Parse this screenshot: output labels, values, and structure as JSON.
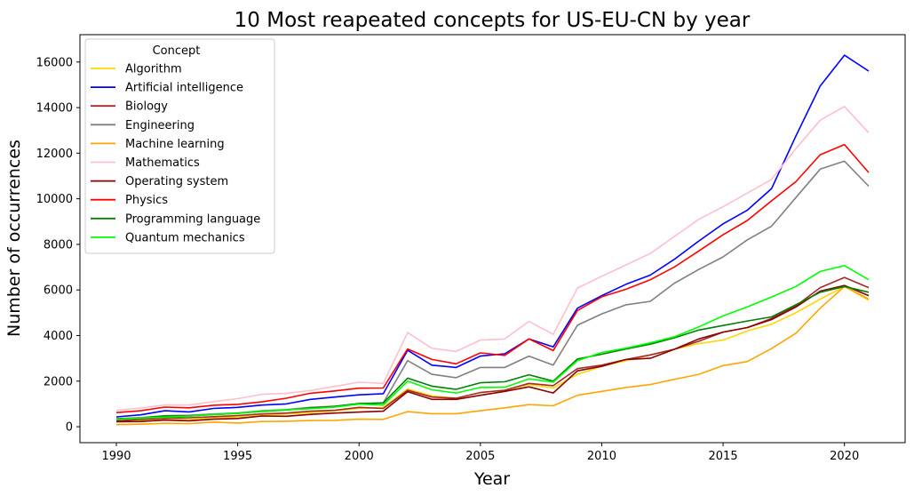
{
  "chart_data": {
    "type": "line",
    "title": "10 Most reapeated concepts for US-EU-CN by year",
    "xlabel": "Year",
    "ylabel": "Number of occurrences",
    "xlim": [
      1988.5,
      2022.5
    ],
    "ylim": [
      -700,
      17200
    ],
    "x_ticks": [
      1990,
      1995,
      2000,
      2005,
      2010,
      2015,
      2020
    ],
    "y_ticks": [
      0,
      2000,
      4000,
      6000,
      8000,
      10000,
      12000,
      14000,
      16000
    ],
    "legend": {
      "title": "Concept",
      "position": "top-left"
    },
    "grid": false,
    "x": [
      1990,
      1991,
      1992,
      1993,
      1994,
      1995,
      1996,
      1997,
      1998,
      1999,
      2000,
      2001,
      2002,
      2003,
      2004,
      2005,
      2006,
      2007,
      2008,
      2009,
      2010,
      2011,
      2012,
      2013,
      2014,
      2015,
      2016,
      2017,
      2018,
      2019,
      2020,
      2021
    ],
    "series": [
      {
        "name": "Algorithm",
        "color": "#ffd700",
        "values": [
          230,
          260,
          300,
          310,
          380,
          430,
          500,
          560,
          620,
          700,
          800,
          850,
          1650,
          1350,
          1250,
          1500,
          1600,
          1850,
          1700,
          2300,
          2650,
          2900,
          3150,
          3400,
          3650,
          3800,
          4200,
          4500,
          5000,
          5600,
          6150,
          5550
        ]
      },
      {
        "name": "Artificial intelligence",
        "color": "#0000ff",
        "values": [
          430,
          520,
          700,
          650,
          800,
          850,
          950,
          1000,
          1200,
          1300,
          1400,
          1450,
          3350,
          2700,
          2600,
          3100,
          3200,
          3850,
          3500,
          5200,
          5750,
          6250,
          6650,
          7350,
          8150,
          8900,
          9500,
          10450,
          12750,
          14950,
          16300,
          15600
        ]
      },
      {
        "name": "Biology",
        "color": "#a52a2a",
        "values": [
          260,
          320,
          370,
          390,
          440,
          490,
          560,
          600,
          680,
          720,
          850,
          800,
          1600,
          1300,
          1250,
          1500,
          1600,
          1900,
          1800,
          2550,
          2700,
          2950,
          3150,
          3400,
          3750,
          4150,
          4350,
          4750,
          5300,
          6100,
          6550,
          6100
        ]
      },
      {
        "name": "Engineering",
        "color": "#808080",
        "values": [
          350,
          400,
          480,
          500,
          560,
          600,
          700,
          750,
          850,
          900,
          1000,
          1050,
          2900,
          2300,
          2150,
          2600,
          2600,
          3100,
          2700,
          4450,
          4950,
          5350,
          5500,
          6300,
          6900,
          7450,
          8200,
          8800,
          10050,
          11300,
          11650,
          10550
        ]
      },
      {
        "name": "Machine learning",
        "color": "#ffa500",
        "values": [
          90,
          110,
          150,
          140,
          200,
          160,
          230,
          240,
          270,
          280,
          330,
          320,
          660,
          570,
          570,
          700,
          830,
          970,
          920,
          1380,
          1550,
          1720,
          1850,
          2080,
          2300,
          2680,
          2860,
          3430,
          4100,
          5200,
          6150,
          5600
        ]
      },
      {
        "name": "Mathematics",
        "color": "#ffc0cb",
        "values": [
          720,
          820,
          950,
          950,
          1100,
          1230,
          1420,
          1460,
          1590,
          1770,
          1950,
          1900,
          4130,
          3440,
          3300,
          3800,
          3850,
          4620,
          4050,
          6080,
          6600,
          7100,
          7600,
          8350,
          9100,
          9650,
          10250,
          10850,
          12200,
          13450,
          14050,
          12900
        ]
      },
      {
        "name": "Operating system",
        "color": "#8b0000",
        "values": [
          220,
          230,
          290,
          260,
          330,
          360,
          470,
          460,
          540,
          600,
          640,
          680,
          1540,
          1200,
          1200,
          1380,
          1550,
          1750,
          1480,
          2450,
          2650,
          2950,
          3000,
          3400,
          3850,
          4150,
          4350,
          4700,
          5250,
          5950,
          6200,
          5750
        ]
      },
      {
        "name": "Physics",
        "color": "#ff0000",
        "values": [
          620,
          700,
          860,
          830,
          940,
          980,
          1090,
          1250,
          1470,
          1570,
          1690,
          1700,
          3410,
          2950,
          2760,
          3240,
          3130,
          3850,
          3340,
          5100,
          5700,
          6030,
          6450,
          7010,
          7710,
          8420,
          9050,
          9910,
          10750,
          11930,
          12380,
          11150
        ]
      },
      {
        "name": "Programming language",
        "color": "#008000",
        "values": [
          340,
          380,
          470,
          470,
          530,
          590,
          670,
          730,
          820,
          890,
          1020,
          1040,
          2130,
          1780,
          1640,
          1930,
          1970,
          2280,
          2000,
          2970,
          3180,
          3410,
          3620,
          3900,
          4240,
          4440,
          4640,
          4820,
          5350,
          5900,
          6150,
          5900
        ]
      },
      {
        "name": "Quantum mechanics",
        "color": "#00ff00",
        "values": [
          320,
          380,
          420,
          460,
          540,
          580,
          680,
          740,
          790,
          860,
          990,
          950,
          2000,
          1620,
          1480,
          1720,
          1730,
          2100,
          1950,
          2900,
          3260,
          3450,
          3680,
          3950,
          4380,
          4860,
          5260,
          5690,
          6150,
          6810,
          7070,
          6450
        ]
      }
    ]
  }
}
